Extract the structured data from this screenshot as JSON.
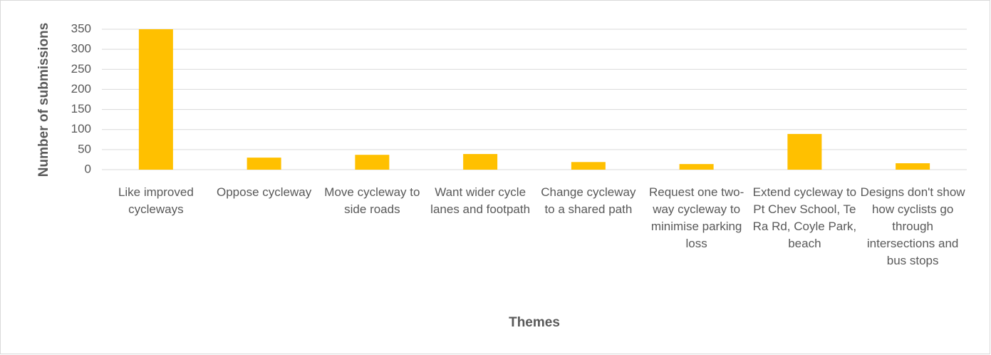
{
  "chart_data": {
    "type": "bar",
    "categories": [
      "Like improved cycleways",
      "Oppose cycleway",
      "Move cycleway to side roads",
      "Want wider cycle lanes and footpath",
      "Change cycleway to a shared path",
      "Request one two-way cycleway to minimise parking loss",
      "Extend cycleway to Pt Chev School, Te Ra Rd, Coyle Park, beach",
      "Designs don't show how cyclists go through intersections and bus stops"
    ],
    "values": [
      350,
      30,
      37,
      39,
      19,
      14,
      89,
      16
    ],
    "color": "#ffc000",
    "ylim": [
      0,
      350
    ],
    "yticks": [
      0,
      50,
      100,
      150,
      200,
      250,
      300,
      350
    ],
    "grid": true,
    "y_label": "Number of submissions",
    "x_label": "Themes"
  }
}
